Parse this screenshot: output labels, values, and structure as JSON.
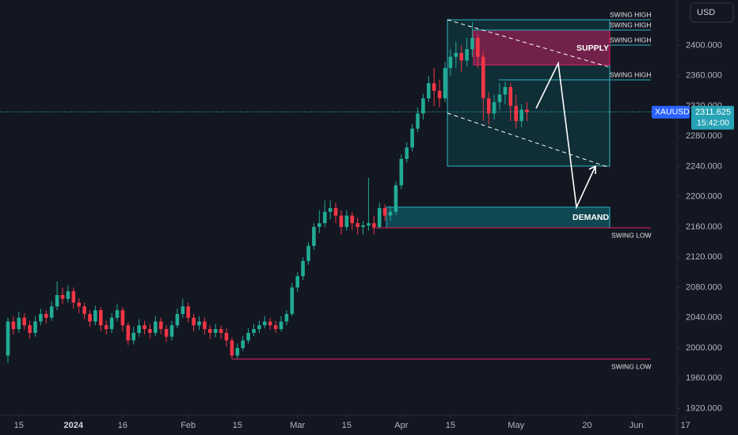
{
  "chart_data": {
    "type": "candlestick",
    "symbol": "XAUUSD",
    "currency": "USD",
    "countdown": "15:42:00",
    "up_color": "#22ab94",
    "down_color": "#f23645",
    "open": [
      1990,
      2035,
      2025,
      2040,
      2030,
      2020,
      2035,
      2045,
      2040,
      2055,
      2070,
      2065,
      2075,
      2060,
      2055,
      2045,
      2035,
      2050,
      2030,
      2025,
      2040,
      2050,
      2030,
      2010,
      2020,
      2030,
      2025,
      2020,
      2035,
      2025,
      2015,
      2030,
      2045,
      2055,
      2040,
      2030,
      2035,
      2025,
      2020,
      2025,
      2020,
      2010,
      1990,
      2000,
      2010,
      2020,
      2025,
      2030,
      2035,
      2030,
      2025,
      2035,
      2045,
      2080,
      2095,
      2115,
      2135,
      2160,
      2165,
      2180,
      2185,
      2175,
      2160,
      2175,
      2165,
      2160,
      2162,
      2165,
      2160,
      2185,
      2175,
      2180,
      2215,
      2250,
      2265,
      2290,
      2310,
      2330,
      2350,
      2340,
      2330,
      2370,
      2385,
      2390,
      2380,
      2395,
      2410,
      2385,
      2330,
      2310,
      2325,
      2335,
      2345,
      2320,
      2300,
      2315
    ],
    "high": [
      2040,
      2042,
      2048,
      2046,
      2036,
      2042,
      2052,
      2050,
      2062,
      2088,
      2080,
      2083,
      2080,
      2066,
      2060,
      2050,
      2056,
      2054,
      2036,
      2046,
      2058,
      2054,
      2034,
      2028,
      2038,
      2036,
      2032,
      2042,
      2040,
      2030,
      2036,
      2052,
      2065,
      2060,
      2045,
      2042,
      2040,
      2030,
      2032,
      2030,
      2026,
      2014,
      2006,
      2016,
      2026,
      2032,
      2036,
      2042,
      2040,
      2036,
      2042,
      2050,
      2086,
      2100,
      2120,
      2140,
      2165,
      2182,
      2195,
      2195,
      2192,
      2182,
      2182,
      2180,
      2172,
      2168,
      2225,
      2175,
      2192,
      2190,
      2188,
      2220,
      2256,
      2272,
      2296,
      2318,
      2336,
      2360,
      2370,
      2355,
      2378,
      2395,
      2405,
      2400,
      2410,
      2431,
      2416,
      2392,
      2338,
      2335,
      2350,
      2352,
      2350,
      2335,
      2322,
      2325
    ],
    "low": [
      1980,
      2018,
      2020,
      2024,
      2012,
      2015,
      2030,
      2032,
      2036,
      2050,
      2058,
      2060,
      2052,
      2046,
      2038,
      2028,
      2030,
      2022,
      2018,
      2020,
      2035,
      2022,
      2004,
      2005,
      2015,
      2018,
      2012,
      2016,
      2018,
      2008,
      2010,
      2026,
      2040,
      2034,
      2022,
      2024,
      2018,
      2012,
      2014,
      2012,
      2002,
      1985,
      1986,
      1996,
      2006,
      2016,
      2020,
      2026,
      2024,
      2020,
      2022,
      2030,
      2042,
      2074,
      2090,
      2110,
      2130,
      2152,
      2160,
      2170,
      2165,
      2150,
      2155,
      2156,
      2150,
      2150,
      2155,
      2150,
      2158,
      2168,
      2168,
      2176,
      2210,
      2245,
      2260,
      2285,
      2302,
      2325,
      2320,
      2318,
      2325,
      2360,
      2370,
      2365,
      2372,
      2385,
      2370,
      2300,
      2295,
      2302,
      2315,
      2322,
      2300,
      2290,
      2292,
      2300
    ],
    "close": [
      2035,
      2025,
      2040,
      2030,
      2020,
      2035,
      2045,
      2040,
      2055,
      2070,
      2065,
      2075,
      2060,
      2055,
      2045,
      2035,
      2050,
      2030,
      2025,
      2040,
      2050,
      2030,
      2010,
      2020,
      2030,
      2025,
      2020,
      2035,
      2025,
      2015,
      2030,
      2045,
      2055,
      2040,
      2030,
      2035,
      2025,
      2020,
      2025,
      2020,
      2010,
      1990,
      2000,
      2010,
      2020,
      2025,
      2030,
      2035,
      2030,
      2025,
      2035,
      2045,
      2080,
      2095,
      2115,
      2135,
      2160,
      2165,
      2180,
      2185,
      2175,
      2160,
      2175,
      2165,
      2160,
      2162,
      2165,
      2160,
      2185,
      2175,
      2180,
      2215,
      2250,
      2265,
      2290,
      2310,
      2330,
      2350,
      2340,
      2330,
      2370,
      2385,
      2390,
      2380,
      2395,
      2410,
      2385,
      2330,
      2310,
      2325,
      2335,
      2345,
      2320,
      2300,
      2315,
      2311.625
    ],
    "ylim": [
      1885,
      2460
    ],
    "yticks": [
      {
        "value": 2400,
        "label": "2400.000"
      },
      {
        "value": 2360,
        "label": "2360.000"
      },
      {
        "value": 2320,
        "label": "2320.000"
      },
      {
        "value": 2280,
        "label": "2280.000"
      },
      {
        "value": 2240,
        "label": "2240.000"
      },
      {
        "value": 2200,
        "label": "2200.000"
      },
      {
        "value": 2160,
        "label": "2160.000"
      },
      {
        "value": 2120,
        "label": "2120.000"
      },
      {
        "value": 2080,
        "label": "2080.000"
      },
      {
        "value": 2040,
        "label": "2040.000"
      },
      {
        "value": 2000,
        "label": "2000.000"
      },
      {
        "value": 1960,
        "label": "1960.000"
      },
      {
        "value": 1920,
        "label": "1920.000"
      }
    ],
    "xticks": [
      {
        "value": 2,
        "label": "15"
      },
      {
        "value": 12,
        "label": "2024"
      },
      {
        "value": 21,
        "label": "16"
      },
      {
        "value": 33,
        "label": "Feb"
      },
      {
        "value": 42,
        "label": "15"
      },
      {
        "value": 53,
        "label": "Mar"
      },
      {
        "value": 62,
        "label": "15"
      },
      {
        "value": 72,
        "label": "Apr"
      },
      {
        "value": 81,
        "label": "15"
      },
      {
        "value": 93,
        "label": "May"
      },
      {
        "value": 106,
        "label": "20"
      },
      {
        "value": 115,
        "label": "Jun"
      },
      {
        "value": 124,
        "label": "17"
      }
    ],
    "annotations": [
      "SWING HIGH",
      "SWING HIGH",
      "SWING HIGH",
      "SWING HIGH",
      "SUPPLY",
      "DEMAND",
      "SWING LOW",
      "SWING LOW"
    ]
  }
}
